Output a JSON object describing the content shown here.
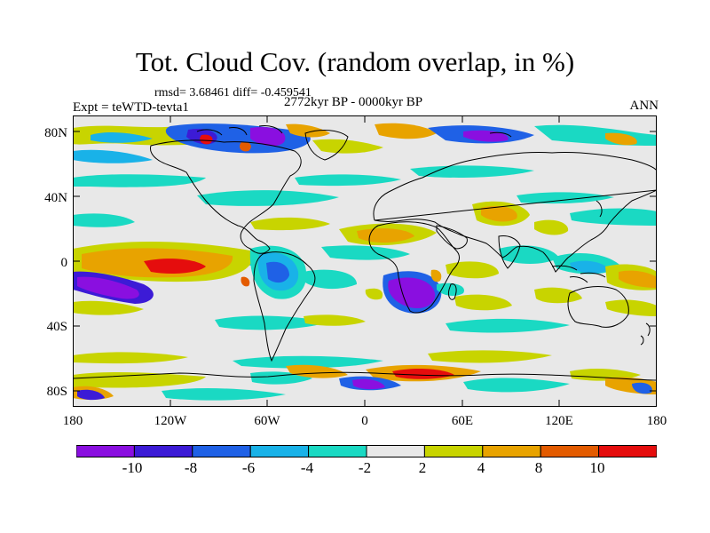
{
  "title": "Tot. Cloud Cov. (random overlap, in %)",
  "stats": "rmsd= 3.68461 diff= -0.459541",
  "experiment": "Expt = teWTD-tevta1",
  "period": "2772kyr BP - 0000kyr BP",
  "season": "ANN",
  "y_axis_labels": [
    "80N",
    "40N",
    "0",
    "40S",
    "80S"
  ],
  "x_axis_labels": [
    "180",
    "120W",
    "60W",
    "0",
    "60E",
    "120E",
    "180"
  ],
  "colorbar": {
    "labels": [
      "-10",
      "-8",
      "-6",
      "-4",
      "-2",
      "2",
      "4",
      "8",
      "10"
    ],
    "colors": [
      "#8a0fe0",
      "#3c1bd6",
      "#1f61e6",
      "#19b2e8",
      "#1ad9c3",
      "#e8e8e8",
      "#c8d400",
      "#e8a300",
      "#e35b00",
      "#e50d0d"
    ]
  },
  "colors": {
    "background": "#e8e8e8",
    "purple": "#8a0fe0",
    "indigo": "#3c1bd6",
    "blue": "#1f61e6",
    "sky": "#19b2e8",
    "cyan": "#1ad9c3",
    "yellow": "#c8d400",
    "orange": "#e8a300",
    "darkorange": "#e35b00",
    "red": "#e50d0d"
  }
}
